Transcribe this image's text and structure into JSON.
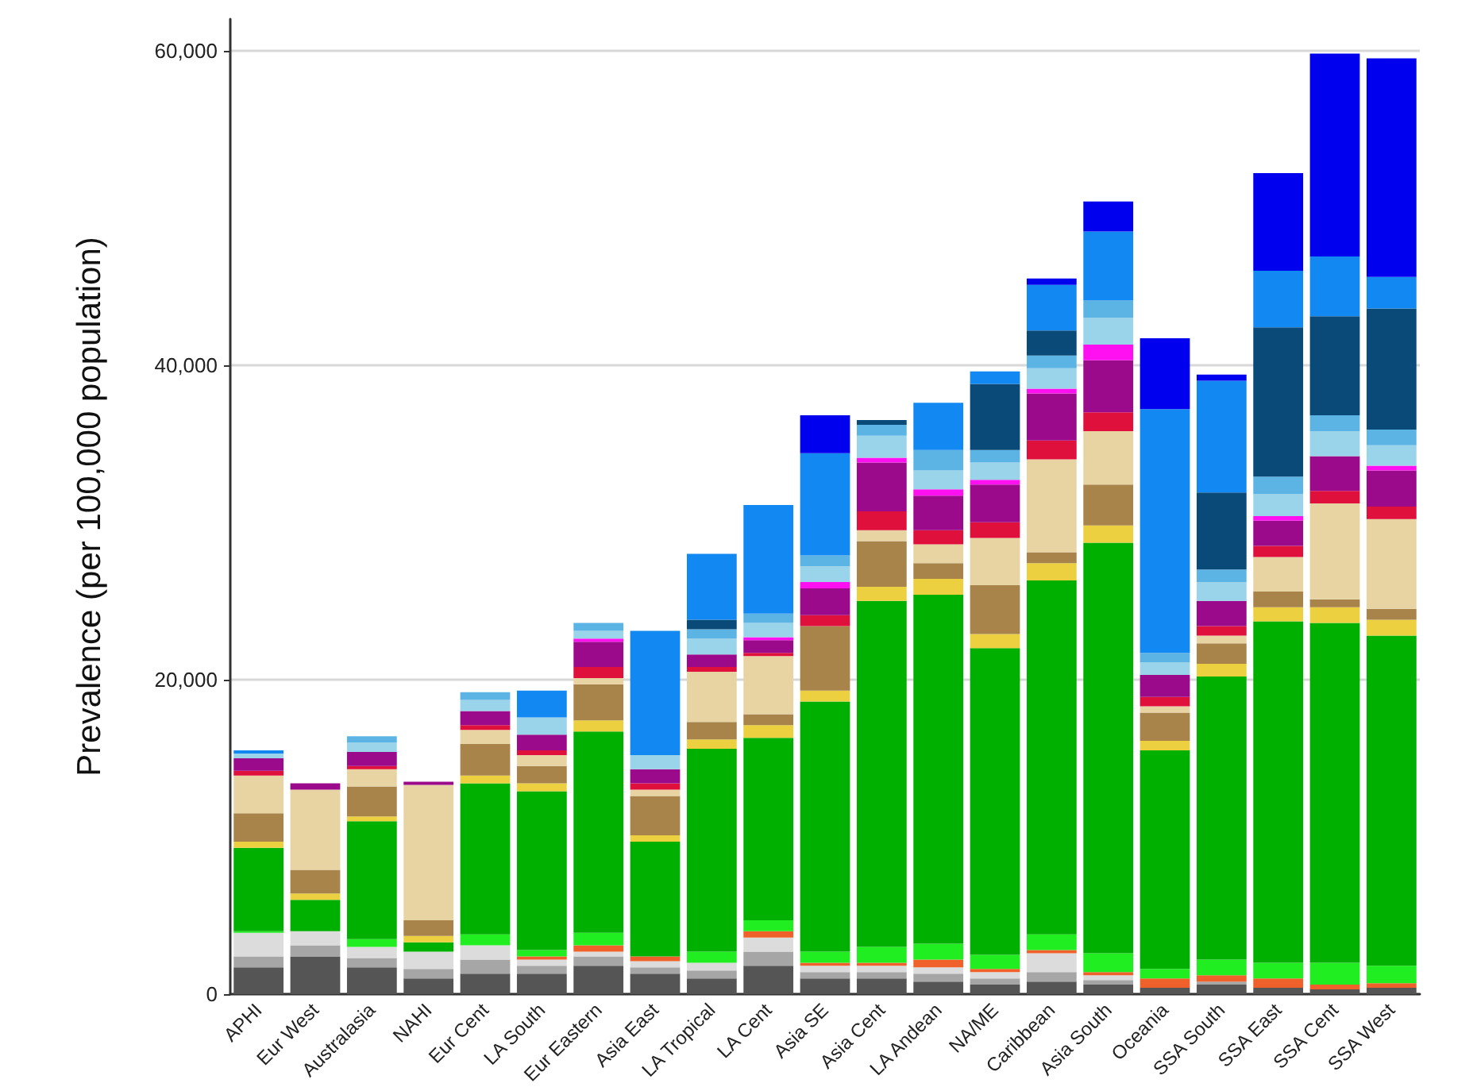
{
  "chart_data": {
    "type": "bar",
    "stacked": true,
    "ylabel": "Prevalence (per 100,000 population)",
    "categories": [
      "APHI",
      "Eur West",
      "Australasia",
      "NAHI",
      "Eur Cent",
      "LA South",
      "Eur Eastern",
      "Asia East",
      "LA Tropical",
      "LA Cent",
      "Asia SE",
      "Asia Cent",
      "LA Andean",
      "NA/ME",
      "Caribbean",
      "Asia South",
      "Oceania",
      "SSA South",
      "SSA East",
      "SSA Cent",
      "SSA West"
    ],
    "series": [
      {
        "color": "#555555",
        "values": [
          1700,
          2400,
          1700,
          1000,
          1300,
          1300,
          1800,
          1300,
          1000,
          1800,
          1000,
          1000,
          800,
          600,
          800,
          600,
          400,
          600,
          400,
          300,
          400
        ]
      },
      {
        "color": "#a6a6a6",
        "values": [
          700,
          700,
          600,
          600,
          900,
          500,
          600,
          400,
          500,
          900,
          400,
          400,
          500,
          400,
          600,
          300,
          0,
          200,
          0,
          0,
          0
        ]
      },
      {
        "color": "#dcdcdc",
        "values": [
          1500,
          900,
          700,
          1100,
          900,
          400,
          300,
          400,
          500,
          900,
          400,
          400,
          400,
          400,
          1200,
          300,
          0,
          0,
          0,
          0,
          0
        ]
      },
      {
        "color": "#f0602a",
        "values": [
          0,
          0,
          0,
          0,
          0,
          200,
          400,
          300,
          0,
          400,
          200,
          200,
          500,
          200,
          200,
          200,
          600,
          400,
          600,
          300,
          300
        ]
      },
      {
        "color": "#20ee20",
        "values": [
          100,
          0,
          500,
          0,
          700,
          400,
          800,
          0,
          700,
          700,
          700,
          1000,
          1000,
          900,
          1000,
          1200,
          600,
          1000,
          1000,
          1400,
          1100
        ]
      },
      {
        "color": "#00b000",
        "values": [
          5300,
          2000,
          7500,
          600,
          9600,
          10100,
          12800,
          7300,
          12900,
          11600,
          15900,
          22000,
          22200,
          19500,
          22500,
          26100,
          13900,
          18000,
          21700,
          21600,
          21000
        ]
      },
      {
        "color": "#ecd040",
        "values": [
          400,
          400,
          300,
          400,
          500,
          500,
          700,
          400,
          600,
          800,
          700,
          900,
          1000,
          900,
          1100,
          1100,
          600,
          800,
          900,
          1000,
          1000
        ]
      },
      {
        "color": "#a8844a",
        "values": [
          1800,
          1500,
          1900,
          1000,
          2000,
          1100,
          2300,
          2500,
          1100,
          700,
          4100,
          2900,
          1000,
          3100,
          700,
          2600,
          1800,
          1300,
          1000,
          500,
          700
        ]
      },
      {
        "color": "#e8d4a2",
        "values": [
          2400,
          5100,
          1100,
          8600,
          900,
          700,
          400,
          400,
          3200,
          3700,
          0,
          700,
          1200,
          3000,
          5900,
          3400,
          400,
          500,
          2200,
          6100,
          5700
        ]
      },
      {
        "color": "#e0103c",
        "values": [
          300,
          0,
          200,
          0,
          300,
          300,
          700,
          400,
          300,
          200,
          700,
          1200,
          900,
          1000,
          1200,
          1200,
          600,
          600,
          700,
          800,
          800
        ]
      },
      {
        "color": "#9a0a8a",
        "values": [
          800,
          400,
          900,
          200,
          900,
          1000,
          1600,
          900,
          800,
          800,
          1700,
          3100,
          2200,
          2400,
          3000,
          3300,
          1400,
          1600,
          1600,
          2200,
          2300
        ]
      },
      {
        "color": "#ff10f0",
        "values": [
          0,
          0,
          0,
          0,
          0,
          0,
          200,
          0,
          0,
          200,
          400,
          300,
          400,
          300,
          300,
          1000,
          0,
          0,
          300,
          0,
          300
        ]
      },
      {
        "color": "#9ad4ea",
        "values": [
          300,
          0,
          600,
          0,
          700,
          1100,
          500,
          900,
          1000,
          900,
          1000,
          1400,
          1200,
          1100,
          1300,
          1700,
          800,
          1200,
          1400,
          1600,
          1300
        ]
      },
      {
        "color": "#5cb4e4",
        "values": [
          0,
          0,
          400,
          0,
          500,
          0,
          500,
          0,
          600,
          600,
          700,
          700,
          1300,
          800,
          800,
          1100,
          600,
          800,
          1100,
          1000,
          1000
        ]
      },
      {
        "color": "#0a4a78",
        "values": [
          0,
          0,
          0,
          0,
          0,
          0,
          0,
          0,
          600,
          0,
          0,
          300,
          0,
          4200,
          1600,
          0,
          0,
          4900,
          9500,
          6300,
          7700
        ]
      },
      {
        "color": "#1288f2",
        "values": [
          200,
          0,
          0,
          0,
          0,
          1700,
          0,
          7900,
          4200,
          6900,
          6500,
          0,
          3000,
          800,
          2900,
          4400,
          15500,
          7100,
          3600,
          3800,
          2000
        ]
      },
      {
        "color": "#0000ee",
        "values": [
          0,
          0,
          0,
          0,
          0,
          0,
          0,
          0,
          0,
          0,
          2400,
          0,
          0,
          0,
          400,
          1900,
          4500,
          400,
          6200,
          12900,
          13900
        ]
      }
    ],
    "ylim": [
      0,
      62000
    ],
    "yticks": [
      {
        "value": 0,
        "label": "0"
      },
      {
        "value": 20000,
        "label": "20,000"
      },
      {
        "value": 40000,
        "label": "40,000"
      },
      {
        "value": 60000,
        "label": "60,000"
      }
    ],
    "grid": "y"
  }
}
